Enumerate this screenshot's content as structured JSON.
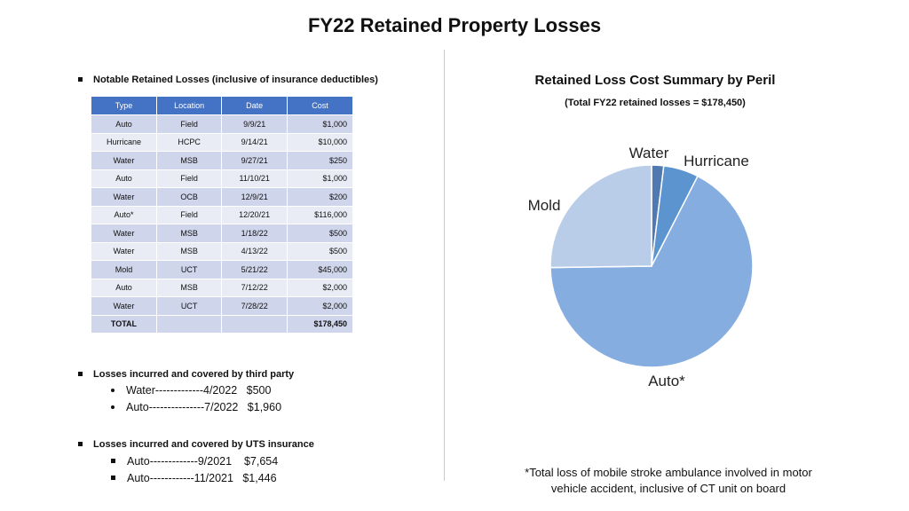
{
  "title": "FY22 Retained Property Losses",
  "notable": {
    "heading": "Notable Retained Losses (inclusive of insurance deductibles)",
    "columns": [
      "Type",
      "Location",
      "Date",
      "Cost"
    ],
    "rows": [
      [
        "Auto",
        "Field",
        "9/9/21",
        "$1,000"
      ],
      [
        "Hurricane",
        "HCPC",
        "9/14/21",
        "$10,000"
      ],
      [
        "Water",
        "MSB",
        "9/27/21",
        "$250"
      ],
      [
        "Auto",
        "Field",
        "11/10/21",
        "$1,000"
      ],
      [
        "Water",
        "OCB",
        "12/9/21",
        "$200"
      ],
      [
        "Auto*",
        "Field",
        "12/20/21",
        "$116,000"
      ],
      [
        "Water",
        "MSB",
        "1/18/22",
        "$500"
      ],
      [
        "Water",
        "MSB",
        "4/13/22",
        "$500"
      ],
      [
        "Mold",
        "UCT",
        "5/21/22",
        "$45,000"
      ],
      [
        "Auto",
        "MSB",
        "7/12/22",
        "$2,000"
      ],
      [
        "Water",
        "UCT",
        "7/28/22",
        "$2,000"
      ]
    ],
    "total": [
      "TOTAL",
      "",
      "",
      "$178,450"
    ]
  },
  "third_party": {
    "heading": "Losses incurred and covered by third party",
    "items": [
      "Water-------------4/2022   $500",
      "Auto---------------7/2022   $1,960"
    ]
  },
  "uts": {
    "heading": "Losses incurred and covered by UTS insurance",
    "items": [
      "Auto-------------9/2021    $7,654",
      "Auto------------11/2021   $1,446"
    ]
  },
  "chart_data": {
    "type": "pie",
    "title": "Retained Loss Cost Summary by Peril",
    "subtitle": "(Total FY22 retained losses = $178,450)",
    "categories": [
      "Water",
      "Hurricane",
      "Auto*",
      "Mold"
    ],
    "values": [
      3450,
      10000,
      120000,
      45000
    ],
    "colors": [
      "#4f79b0",
      "#5b94cf",
      "#86ade0",
      "#b9cde9"
    ]
  },
  "footnote": "*Total loss of mobile stroke ambulance involved in motor vehicle accident, inclusive of CT unit on board"
}
